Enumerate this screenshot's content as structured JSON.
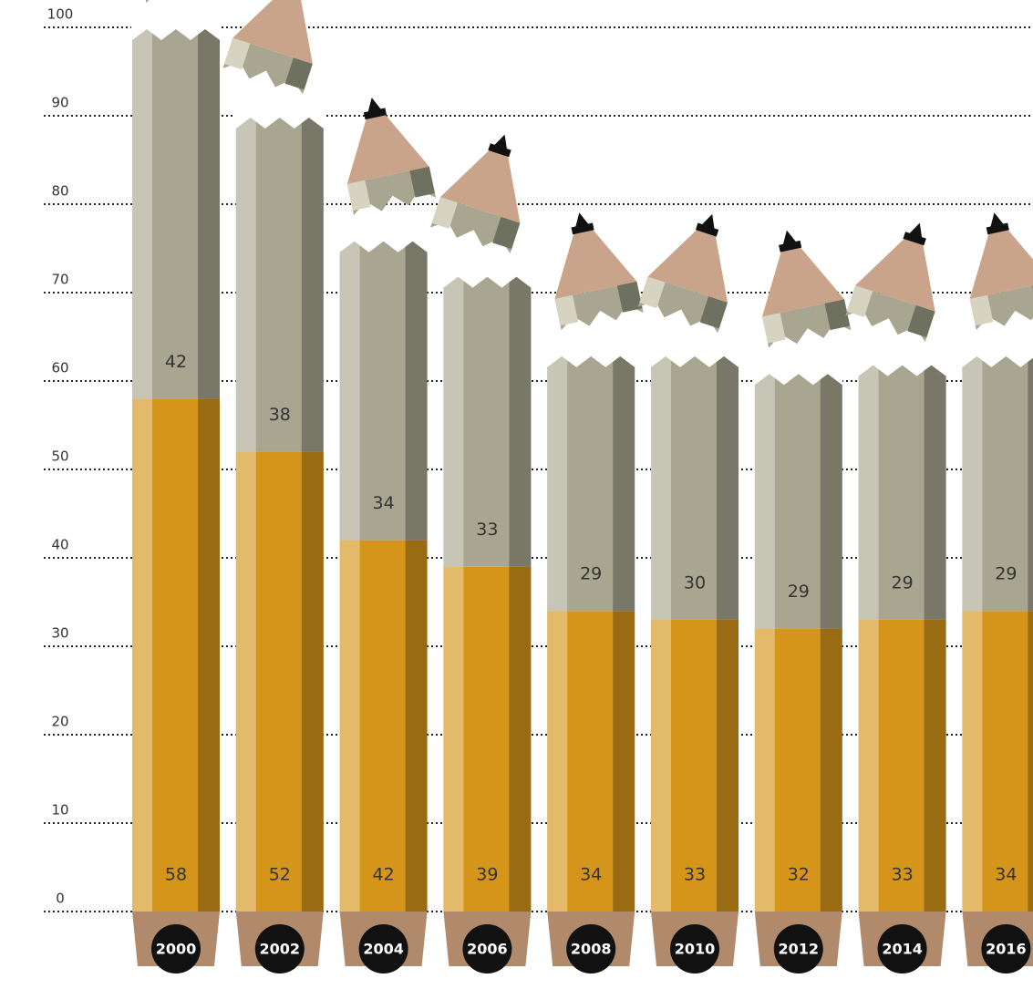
{
  "chart_data": {
    "type": "bar",
    "categories": [
      "2000",
      "2002",
      "2004",
      "2006",
      "2008",
      "2010",
      "2012",
      "2014",
      "2016"
    ],
    "series": [
      {
        "color": "#d4951a",
        "values": [
          58,
          52,
          42,
          39,
          34,
          33,
          32,
          33,
          34
        ]
      },
      {
        "color": "#a8a690",
        "values": [
          42,
          38,
          34,
          33,
          29,
          30,
          29,
          29,
          29
        ]
      }
    ],
    "stacked": true,
    "ylim": [
      0,
      100
    ],
    "yticks": [
      0,
      10,
      20,
      30,
      40,
      50,
      60,
      70,
      80,
      90,
      100
    ],
    "grid": true
  }
}
